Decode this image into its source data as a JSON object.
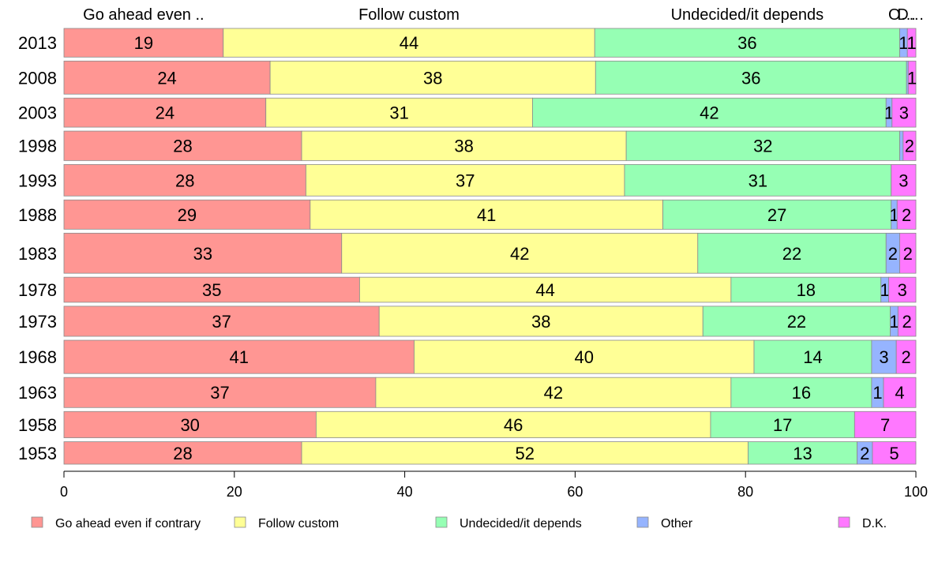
{
  "chart_data": {
    "type": "bar",
    "orientation": "horizontal",
    "stacked": true,
    "categories": [
      "2013",
      "2008",
      "2003",
      "1998",
      "1993",
      "1988",
      "1983",
      "1978",
      "1973",
      "1968",
      "1963",
      "1958",
      "1953"
    ],
    "category_weights": [
      14.3,
      16.5,
      14.5,
      14.7,
      15.7,
      14.6,
      20.0,
      12.5,
      15.0,
      16.6,
      15.0,
      13.1,
      11.2
    ],
    "series": [
      {
        "name": "Go ahead even if contrary",
        "top_label": "Go ahead even ..",
        "color": "#ff9693",
        "values": [
          18.7,
          24.2,
          23.7,
          27.9,
          28.4,
          28.9,
          32.6,
          34.7,
          37.0,
          41.1,
          36.6,
          29.6,
          27.9
        ],
        "labels": [
          "19",
          "24",
          "24",
          "28",
          "28",
          "29",
          "33",
          "35",
          "37",
          "41",
          "37",
          "30",
          "28"
        ]
      },
      {
        "name": "Follow custom",
        "top_label": "Follow custom",
        "color": "#ffff96",
        "values": [
          43.6,
          38.2,
          31.3,
          38.1,
          37.4,
          41.4,
          41.8,
          43.6,
          38.0,
          39.9,
          41.7,
          46.3,
          52.4
        ],
        "labels": [
          "44",
          "38",
          "31",
          "38",
          "37",
          "41",
          "42",
          "44",
          "38",
          "40",
          "42",
          "46",
          "52"
        ]
      },
      {
        "name": "Undecided/it depends",
        "top_label": "Undecided/it depends",
        "color": "#96ffb4",
        "values": [
          35.8,
          36.5,
          41.5,
          32.1,
          31.3,
          26.8,
          22.1,
          17.6,
          22.0,
          13.8,
          16.5,
          16.9,
          12.8
        ],
        "labels": [
          "36",
          "36",
          "42",
          "32",
          "31",
          "27",
          "22",
          "18",
          "22",
          "14",
          "16",
          "17",
          "13"
        ]
      },
      {
        "name": "Other",
        "top_label": "O…",
        "color": "#96b4ff",
        "values": [
          0.9,
          0.2,
          0.7,
          0.4,
          0.0,
          0.7,
          1.6,
          0.9,
          0.9,
          2.9,
          1.4,
          0.0,
          1.8
        ],
        "labels": [
          "1",
          "",
          "1",
          "",
          "",
          "1",
          "2",
          "1",
          "1",
          "3",
          "1",
          "",
          "2"
        ]
      },
      {
        "name": "D.K.",
        "top_label": "D…",
        "color": "#ff78ff",
        "values": [
          1.0,
          0.9,
          2.8,
          1.5,
          2.9,
          2.2,
          1.9,
          3.2,
          2.1,
          2.3,
          3.8,
          7.2,
          5.1
        ],
        "labels": [
          "1",
          "1",
          "3",
          "2",
          "3",
          "2",
          "2",
          "3",
          "2",
          "2",
          "4",
          "7",
          "5"
        ]
      }
    ],
    "xlim": [
      0,
      100
    ],
    "xticks": [
      "0",
      "20",
      "40",
      "60",
      "80",
      "100"
    ],
    "xlabel": "",
    "ylabel": "",
    "title": "",
    "grid": false,
    "legend_position": "bottom"
  }
}
